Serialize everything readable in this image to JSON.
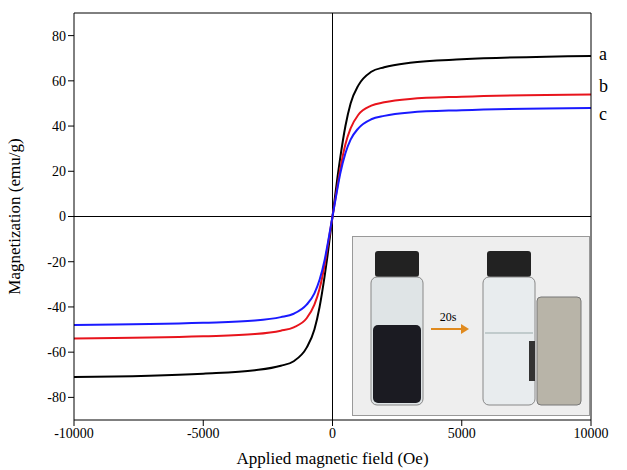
{
  "chart_data": {
    "type": "line",
    "x_label": "Applied magnetic field (Oe)",
    "y_label": "Magnetization (emu/g)",
    "x": [
      -10000,
      -5000,
      -3000,
      -2000,
      -1500,
      -1000,
      -700,
      -500,
      -300,
      -200,
      -100,
      0,
      100,
      200,
      300,
      500,
      700,
      1000,
      1500,
      2000,
      3000,
      5000,
      10000
    ],
    "series": [
      {
        "name": "a",
        "color": "#000000",
        "values": [
          -71,
          -69.5,
          -68,
          -66,
          -64,
          -58,
          -50,
          -40,
          -26,
          -18,
          -9,
          0,
          9,
          18,
          26,
          40,
          50,
          58,
          64,
          66,
          68,
          69.5,
          71
        ]
      },
      {
        "name": "b",
        "color": "#e8141c",
        "values": [
          -54,
          -53,
          -52,
          -50.5,
          -49,
          -45,
          -39,
          -32,
          -21,
          -14,
          -7,
          0,
          7,
          14,
          21,
          32,
          39,
          45,
          49,
          50.5,
          52,
          53,
          54
        ]
      },
      {
        "name": "c",
        "color": "#1a1aff",
        "values": [
          -48,
          -47,
          -46,
          -44.5,
          -43,
          -39,
          -34,
          -28,
          -19,
          -13,
          -6.5,
          0,
          6.5,
          13,
          19,
          28,
          34,
          39,
          43,
          44.5,
          46,
          47,
          48
        ]
      }
    ],
    "xlim": [
      -10000,
      10000
    ],
    "ylim": [
      -90,
      90
    ],
    "xticks": [
      -10000,
      -5000,
      0,
      5000,
      10000
    ],
    "yticks": [
      -80,
      -60,
      -40,
      -20,
      0,
      20,
      40,
      60,
      80
    ],
    "annotations": [
      "20s"
    ],
    "grid": false,
    "marker": "none",
    "line_style": "solid"
  }
}
